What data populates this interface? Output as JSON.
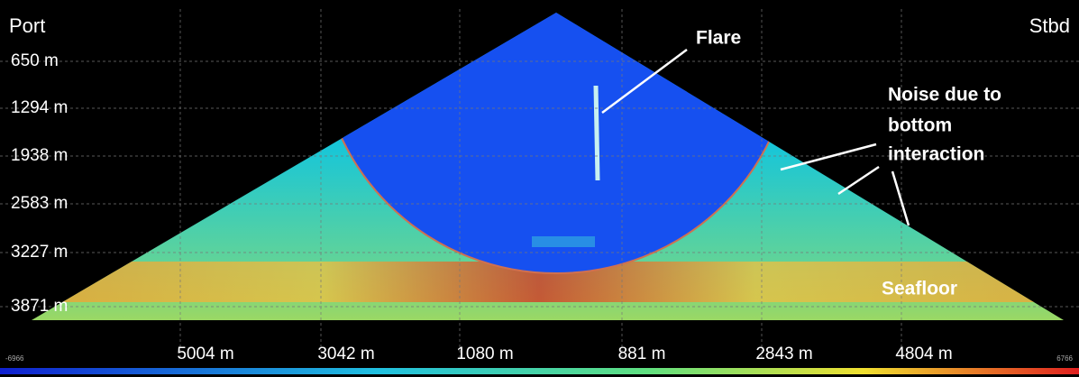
{
  "header": {
    "left": "Port",
    "right": "Stbd"
  },
  "depth_labels": [
    "650 m",
    "1294 m",
    "1938 m",
    "2583 m",
    "3227 m",
    "3871 m"
  ],
  "range_labels": [
    "5004 m",
    "3042 m",
    "1080 m",
    "881 m",
    "2843 m",
    "4804 m"
  ],
  "axis_ends": [
    "-6966",
    "6766"
  ],
  "annotations": {
    "flare": "Flare",
    "noise": [
      "Noise due to",
      "bottom",
      "interaction"
    ],
    "seafloor": "Seafloor"
  }
}
